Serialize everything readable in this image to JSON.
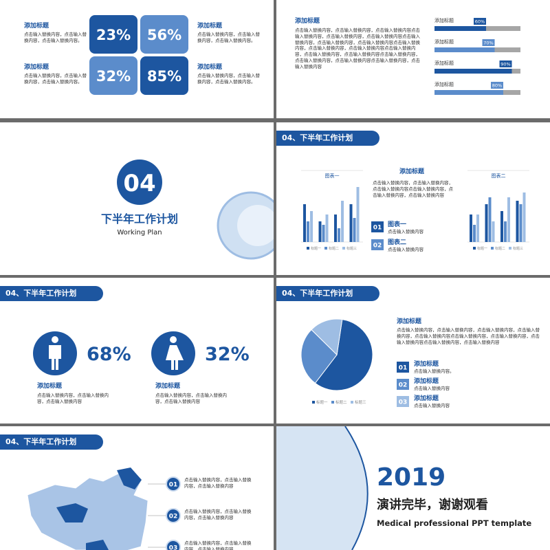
{
  "s1": {
    "tiles": [
      "23%",
      "56%",
      "32%",
      "85%"
    ],
    "items": [
      {
        "title": "添加标题",
        "text": "点击输入替换内容，点击输入替换内容，点击输入替换内容。"
      },
      {
        "title": "添加标题",
        "text": "点击输入替换内容，点击输入替换内容，点击输入替换内容。"
      },
      {
        "title": "添加标题",
        "text": "点击输入替换内容，点击输入替换内容，点击输入替换内容。"
      },
      {
        "title": "添加标题",
        "text": "点击输入替换内容，点击输入替换内容，点击输入替换内容。"
      }
    ]
  },
  "s2": {
    "title": "添加标题",
    "text": "点击输入替换内容，点击输入替换内容，点击输入替换内容点击输入替换内容，点击输入替换内容，点击输入替换内容点击输入替换内容，点击输入替换内容，点击输入替换内容点击输入替换内容，点击输入替换内容，点击输入替换内容点击输入替换内容，点击输入替换内容，点击输入替换内容点击输入替换内容，点击输入替换内容，点击输入替换内容点击输入替换内容，点击输入替换内容",
    "bars": [
      {
        "label": "添加标题",
        "value": 60,
        "value_label": "60%"
      },
      {
        "label": "添加标题",
        "value": 70,
        "value_label": "70%"
      },
      {
        "label": "添加标题",
        "value": 90,
        "value_label": "90%"
      },
      {
        "label": "添加标题",
        "value": 80,
        "value_label": "80%"
      }
    ]
  },
  "s3": {
    "number": "04",
    "title": "下半年工作计划",
    "subtitle": "Working Plan"
  },
  "s4": {
    "header": "04、下半年工作计划",
    "charts": [
      {
        "type": "bar",
        "title": "图表一",
        "series": [
          {
            "name": "标题一",
            "color": "#1d56a0",
            "values": [
              55,
              30,
              40,
              55
            ]
          },
          {
            "name": "标题二",
            "color": "#5b8ccb",
            "values": [
              30,
              25,
              20,
              35
            ]
          },
          {
            "name": "标题三",
            "color": "#9ebde3",
            "values": [
              45,
              40,
              60,
              80
            ]
          }
        ]
      },
      {
        "type": "bar",
        "title": "图表二",
        "series": [
          {
            "name": "标题一",
            "color": "#1d56a0",
            "values": [
              40,
              55,
              45,
              60
            ]
          },
          {
            "name": "标题二",
            "color": "#5b8ccb",
            "values": [
              25,
              65,
              30,
              55
            ]
          },
          {
            "name": "标题三",
            "color": "#9ebde3",
            "values": [
              40,
              30,
              65,
              72
            ]
          }
        ]
      }
    ],
    "title": "添加标题",
    "text": "点击输入替换内容，点击输入替换内容，点击输入替换内容点击输入替换内容，点击输入替换内容，点击输入替换内容",
    "items": [
      {
        "num": "01",
        "title": "图表一",
        "text": "点击输入替换内容"
      },
      {
        "num": "02",
        "title": "图表二",
        "text": "点击输入替换内容"
      }
    ]
  },
  "s5": {
    "header": "04、下半年工作计划",
    "stats": [
      {
        "value": "68%",
        "title": "添加标题",
        "text": "点击输入替换内容，点击输入替换内容，点击输入替换内容"
      },
      {
        "value": "32%",
        "title": "添加标题",
        "text": "点击输入替换内容，点击输入替换内容，点击输入替换内容"
      }
    ]
  },
  "s6": {
    "header": "04、下半年工作计划",
    "pie": {
      "type": "pie",
      "series": [
        {
          "name": "标题一",
          "color": "#1d56a0",
          "value": 58
        },
        {
          "name": "标题二",
          "color": "#5b8ccb",
          "value": 27
        },
        {
          "name": "标题三",
          "color": "#9ebde3",
          "value": 15
        }
      ]
    },
    "title": "添加标题",
    "text": "点击输入替换内容，点击输入替换内容，点击输入替换内容，点击输入替换内容，点击输入替换内容点击输入替换内容，点击输入替换内容，点击输入替换内容点击输入替换内容，点击输入替换内容",
    "items": [
      {
        "num": "01",
        "title": "添加标题",
        "text": "点击输入替换内容。"
      },
      {
        "num": "02",
        "title": "添加标题",
        "text": "点击输入替换内容"
      },
      {
        "num": "03",
        "title": "添加标题",
        "text": "点击输入替换内容"
      }
    ]
  },
  "s7": {
    "header": "04、下半年工作计划",
    "items": [
      {
        "num": "01",
        "text": "点击输入替换内容，点击输入替换内容，点击输入替换内容"
      },
      {
        "num": "02",
        "text": "点击输入替换内容，点击输入替换内容，点击输入替换内容"
      },
      {
        "num": "03",
        "text": "点击输入替换内容，点击输入替换内容，点击输入替换内容"
      }
    ]
  },
  "s8": {
    "year": "2019",
    "title": "演讲完毕，谢谢观看",
    "subtitle": "Medical professional PPT template"
  }
}
